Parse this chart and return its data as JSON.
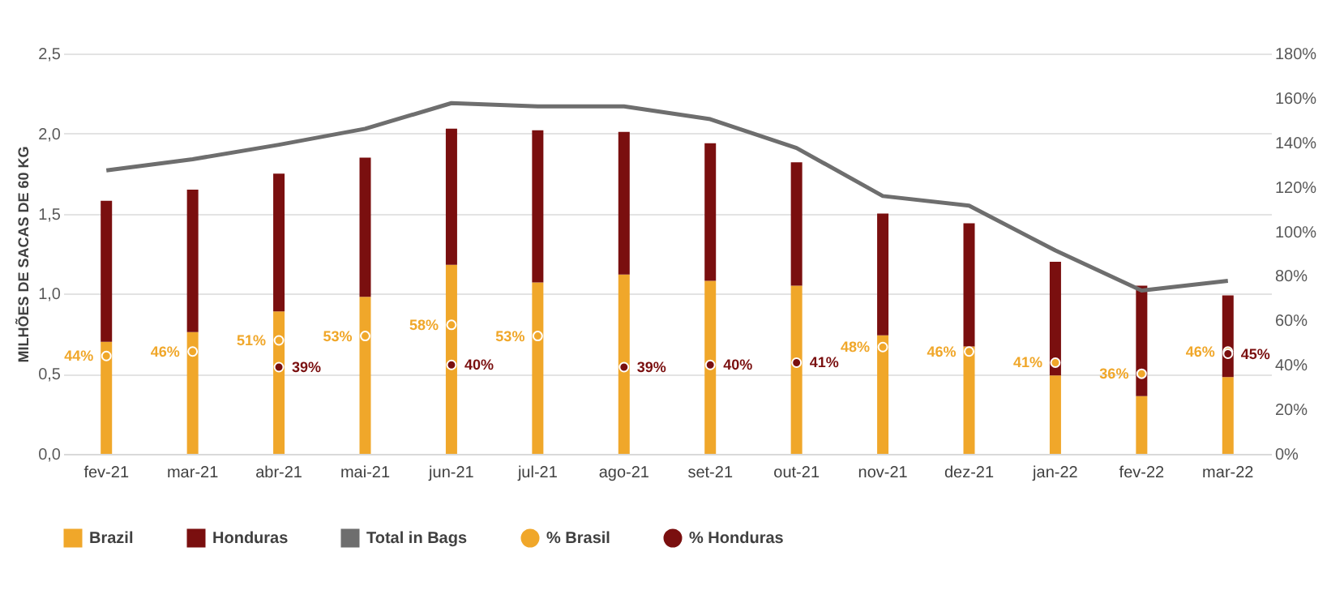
{
  "chart_data": {
    "type": "bar",
    "stacked": true,
    "ylabel": "MILHÕES DE SACAS DE 60 KG",
    "categories": [
      "fev-21",
      "mar-21",
      "abr-21",
      "mai-21",
      "jun-21",
      "jul-21",
      "ago-21",
      "set-21",
      "out-21",
      "nov-21",
      "dez-21",
      "jan-22",
      "fev-22",
      "mar-22"
    ],
    "series": [
      {
        "name": "Brazil",
        "color": "#f0a72a",
        "values": [
          0.7,
          0.76,
          0.89,
          0.98,
          1.18,
          1.07,
          1.12,
          1.08,
          1.05,
          0.74,
          0.67,
          0.49,
          0.36,
          0.48
        ]
      },
      {
        "name": "Honduras",
        "color": "#7a0f0f",
        "values": [
          0.88,
          0.89,
          0.86,
          0.87,
          0.85,
          0.95,
          0.89,
          0.86,
          0.77,
          0.76,
          0.77,
          0.71,
          0.69,
          0.51
        ]
      },
      {
        "name": "Total in Bags",
        "type": "line",
        "color": "#6e6e6e",
        "values": [
          1.77,
          1.84,
          1.93,
          2.03,
          2.19,
          2.17,
          2.17,
          2.09,
          1.91,
          1.61,
          1.55,
          1.27,
          1.02,
          1.08
        ]
      },
      {
        "name": "% Brasil",
        "type": "scatter",
        "marker": "circle",
        "axis": "y2",
        "color": "#f0a72a",
        "values": [
          44,
          46,
          51,
          53,
          58,
          53,
          null,
          null,
          null,
          48,
          46,
          41,
          36,
          46
        ],
        "value_labels": [
          "44%",
          "46%",
          "51%",
          "53%",
          "58%",
          "53%",
          null,
          null,
          null,
          "48%",
          "46%",
          "41%",
          "36%",
          "46%"
        ]
      },
      {
        "name": "% Honduras",
        "type": "scatter",
        "marker": "circle",
        "axis": "y2",
        "color": "#7a0f0f",
        "values": [
          null,
          null,
          39,
          null,
          40,
          null,
          39,
          40,
          41,
          null,
          null,
          null,
          null,
          45
        ],
        "value_labels": [
          null,
          null,
          "39%",
          null,
          "40%",
          null,
          "39%",
          "40%",
          "41%",
          null,
          null,
          null,
          null,
          "45%"
        ]
      }
    ],
    "ylim": [
      0,
      2.5
    ],
    "yticks": [
      {
        "value": 0,
        "label": "0,0"
      },
      {
        "value": 0.5,
        "label": "0,5"
      },
      {
        "value": 1,
        "label": "1,0"
      },
      {
        "value": 1.5,
        "label": "1,5"
      },
      {
        "value": 2,
        "label": "2,0"
      },
      {
        "value": 2.5,
        "label": "2,5"
      }
    ],
    "y2lim": [
      0,
      180
    ],
    "y2ticks": [
      {
        "value": 0,
        "label": "0%"
      },
      {
        "value": 20,
        "label": "20%"
      },
      {
        "value": 40,
        "label": "40%"
      },
      {
        "value": 60,
        "label": "60%"
      },
      {
        "value": 80,
        "label": "80%"
      },
      {
        "value": 100,
        "label": "100%"
      },
      {
        "value": 120,
        "label": "120%"
      },
      {
        "value": 140,
        "label": "140%"
      },
      {
        "value": 160,
        "label": "160%"
      },
      {
        "value": 180,
        "label": "180%"
      }
    ],
    "grid": "y",
    "legend": "bottom"
  }
}
